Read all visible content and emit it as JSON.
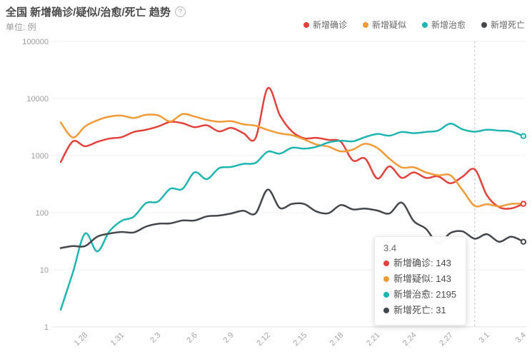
{
  "header": {
    "title": "全国 新增确诊/疑似/治愈/死亡 趋势",
    "help_icon": "?",
    "subtitle": "单位: 例"
  },
  "legend": [
    {
      "id": "confirmed",
      "label": "新增确诊",
      "color": "#e2423d"
    },
    {
      "id": "suspected",
      "label": "新增疑似",
      "color": "#f09b37"
    },
    {
      "id": "cured",
      "label": "新增治愈",
      "color": "#1fb5b1"
    },
    {
      "id": "deaths",
      "label": "新增死亡",
      "color": "#44484b"
    }
  ],
  "tooltip": {
    "title": "3.4",
    "rows": [
      {
        "id": "confirmed",
        "label": "新增确诊",
        "value": "143",
        "color": "#e2423d"
      },
      {
        "id": "suspected",
        "label": "新增疑似",
        "value": "143",
        "color": "#f09b37"
      },
      {
        "id": "cured",
        "label": "新增治愈",
        "value": "2195",
        "color": "#1fb5b1"
      },
      {
        "id": "deaths",
        "label": "新增死亡",
        "value": "31",
        "color": "#44484b"
      }
    ]
  },
  "chart_data": {
    "type": "line",
    "title": "全国 新增确诊/疑似/治愈/死亡 趋势",
    "subtitle": "单位: 例",
    "y_scale": "log",
    "ylim": [
      1,
      100000
    ],
    "y_ticks": [
      1,
      10,
      100,
      1000,
      10000,
      100000
    ],
    "grid": true,
    "smooth": true,
    "legend_position": "top-right",
    "mark_line_x": "2.29",
    "hover_x": "3.4",
    "x": [
      "1.26",
      "1.27",
      "1.28",
      "1.29",
      "1.30",
      "1.31",
      "2.1",
      "2.2",
      "2.3",
      "2.4",
      "2.5",
      "2.6",
      "2.7",
      "2.8",
      "2.9",
      "2.10",
      "2.11",
      "2.12",
      "2.13",
      "2.14",
      "2.15",
      "2.16",
      "2.17",
      "2.18",
      "2.19",
      "2.20",
      "2.21",
      "2.22",
      "2.23",
      "2.24",
      "2.25",
      "2.26",
      "2.27",
      "2.28",
      "2.29",
      "3.1",
      "3.2",
      "3.3",
      "3.4"
    ],
    "x_tick_labels": [
      "1.28",
      "1.31",
      "2.3",
      "2.6",
      "2.9",
      "2.12",
      "2.15",
      "2.18",
      "2.21",
      "2.24",
      "2.27",
      "3.1",
      "3.4"
    ],
    "series": [
      {
        "id": "confirmed",
        "name": "新增确诊",
        "color": "#e2423d",
        "values": [
          769,
          1771,
          1459,
          1737,
          1982,
          2102,
          2590,
          2829,
          3235,
          3887,
          3694,
          3143,
          3399,
          2656,
          3062,
          2478,
          2015,
          15152,
          5090,
          2641,
          2009,
          2048,
          1886,
          1749,
          820,
          889,
          397,
          648,
          409,
          508,
          406,
          433,
          327,
          427,
          573,
          202,
          125,
          119,
          143
        ]
      },
      {
        "id": "suspected",
        "name": "新增疑似",
        "color": "#f09b37",
        "values": [
          3806,
          2077,
          3248,
          4148,
          4812,
          5019,
          4562,
          5173,
          5072,
          3971,
          5328,
          4833,
          4214,
          3916,
          4008,
          3536,
          3342,
          2807,
          2450,
          2277,
          1918,
          1563,
          1432,
          1185,
          1277,
          1614,
          1361,
          882,
          620,
          624,
          508,
          452,
          452,
          248,
          132,
          141,
          129,
          143,
          143
        ]
      },
      {
        "id": "cured",
        "name": "新增治愈",
        "color": "#1fb5b1",
        "values": [
          2,
          9,
          43,
          21,
          47,
          72,
          85,
          147,
          157,
          262,
          261,
          510,
          387,
          600,
          632,
          716,
          744,
          1171,
          1081,
          1373,
          1323,
          1425,
          1701,
          1824,
          1779,
          2109,
          2393,
          2230,
          2589,
          2467,
          2589,
          2750,
          3622,
          2885,
          2623,
          2837,
          2742,
          2652,
          2195
        ]
      },
      {
        "id": "deaths",
        "name": "新增死亡",
        "color": "#44484b",
        "values": [
          24,
          26,
          26,
          38,
          43,
          46,
          45,
          57,
          64,
          65,
          73,
          73,
          86,
          89,
          97,
          108,
          97,
          254,
          121,
          143,
          142,
          105,
          98,
          136,
          114,
          118,
          109,
          97,
          150,
          71,
          52,
          29,
          44,
          47,
          35,
          42,
          31,
          38,
          31
        ]
      }
    ]
  }
}
